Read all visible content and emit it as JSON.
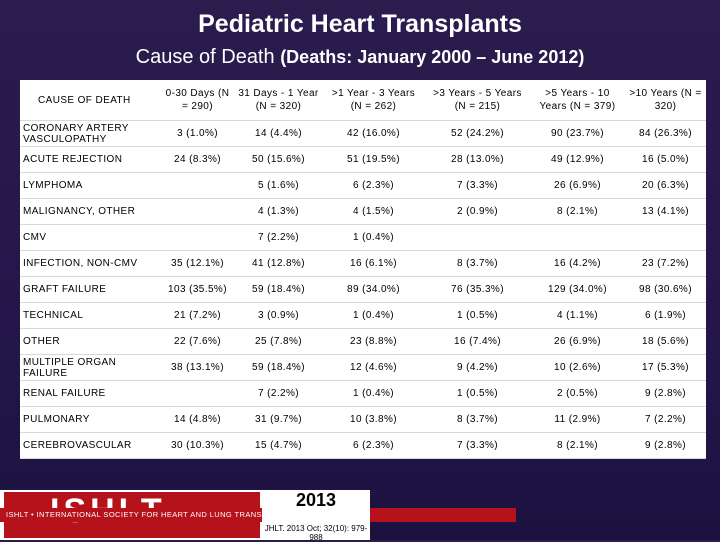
{
  "header": {
    "title": "Pediatric Heart Transplants",
    "subtitle": "Cause of Death",
    "subtitle_detail": "(Deaths: January 2000 – June 2012)"
  },
  "table": {
    "columns": [
      "CAUSE OF DEATH",
      "0-30 Days (N = 290)",
      "31 Days - 1 Year (N = 320)",
      ">1 Year - 3 Years (N = 262)",
      ">3 Years - 5 Years (N = 215)",
      ">5 Years - 10 Years (N = 379)",
      ">10 Years (N = 320)"
    ],
    "rows": [
      [
        "CORONARY ARTERY VASCULOPATHY",
        "3 (1.0%)",
        "14 (4.4%)",
        "42 (16.0%)",
        "52 (24.2%)",
        "90 (23.7%)",
        "84 (26.3%)"
      ],
      [
        "ACUTE REJECTION",
        "24 (8.3%)",
        "50 (15.6%)",
        "51 (19.5%)",
        "28 (13.0%)",
        "49 (12.9%)",
        "16 (5.0%)"
      ],
      [
        "LYMPHOMA",
        null,
        "5 (1.6%)",
        "6 (2.3%)",
        "7 (3.3%)",
        "26 (6.9%)",
        "20 (6.3%)"
      ],
      [
        "MALIGNANCY, OTHER",
        null,
        "4 (1.3%)",
        "4 (1.5%)",
        "2 (0.9%)",
        "8 (2.1%)",
        "13 (4.1%)"
      ],
      [
        "CMV",
        null,
        "7 (2.2%)",
        "1 (0.4%)",
        null,
        null,
        null
      ],
      [
        "INFECTION, NON-CMV",
        "35 (12.1%)",
        "41 (12.8%)",
        "16 (6.1%)",
        "8 (3.7%)",
        "16 (4.2%)",
        "23 (7.2%)"
      ],
      [
        "GRAFT FAILURE",
        "103 (35.5%)",
        "59 (18.4%)",
        "89 (34.0%)",
        "76 (35.3%)",
        "129 (34.0%)",
        "98 (30.6%)"
      ],
      [
        "TECHNICAL",
        "21 (7.2%)",
        "3 (0.9%)",
        "1 (0.4%)",
        "1 (0.5%)",
        "4 (1.1%)",
        "6 (1.9%)"
      ],
      [
        "OTHER",
        "22 (7.6%)",
        "25 (7.8%)",
        "23 (8.8%)",
        "16 (7.4%)",
        "26 (6.9%)",
        "18 (5.6%)"
      ],
      [
        "MULTIPLE ORGAN FAILURE",
        "38 (13.1%)",
        "59 (18.4%)",
        "12 (4.6%)",
        "9 (4.2%)",
        "10 (2.6%)",
        "17 (5.3%)"
      ],
      [
        "RENAL FAILURE",
        null,
        "7 (2.2%)",
        "1 (0.4%)",
        "1 (0.5%)",
        "2 (0.5%)",
        "9 (2.8%)"
      ],
      [
        "PULMONARY",
        "14 (4.8%)",
        "31 (9.7%)",
        "10 (3.8%)",
        "8 (3.7%)",
        "11 (2.9%)",
        "7 (2.2%)"
      ],
      [
        "CEREBROVASCULAR",
        "30 (10.3%)",
        "15 (4.7%)",
        "6 (2.3%)",
        "7 (3.3%)",
        "8 (2.1%)",
        "9 (2.8%)"
      ]
    ]
  },
  "footer": {
    "logo": "ISHLT",
    "society": "ISHLT • INTERNATIONAL SOCIETY FOR HEART AND LUNG TRANSPLANTATION",
    "year": "2013",
    "citation": "JHLT. 2013 Oct; 32(10): 979-988"
  }
}
